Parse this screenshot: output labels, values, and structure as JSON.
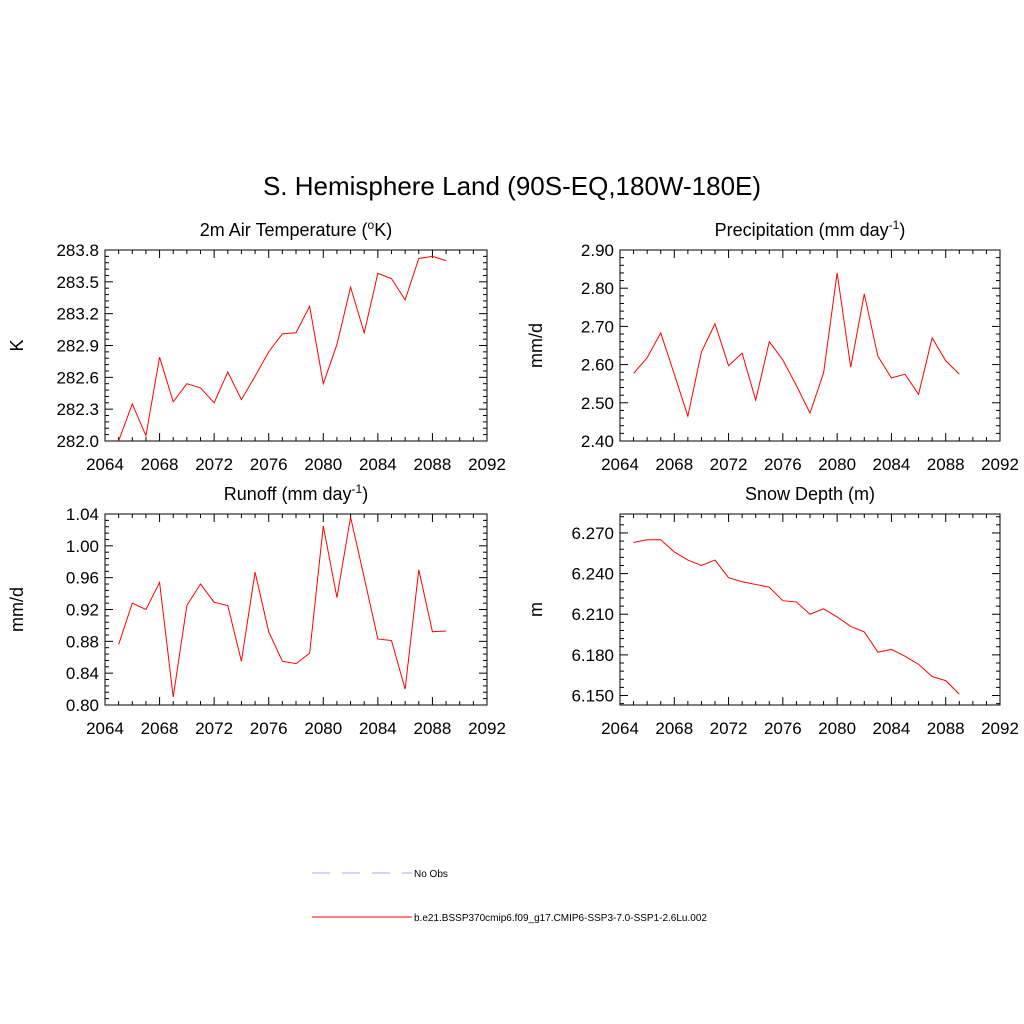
{
  "figure": {
    "title": "S. Hemisphere Land (90S-EQ,180W-180E)"
  },
  "colors": {
    "series": "#ff0000",
    "obs": "#a8a8e0",
    "axis": "#000000"
  },
  "chart_data": [
    {
      "type": "line",
      "title": "2m Air Temperature (",
      "title_sup": "o",
      "title_tail": "K)",
      "xlabel": "",
      "ylabel": "K",
      "xlim": [
        2064,
        2092
      ],
      "ylim": [
        282.0,
        283.8
      ],
      "xticks": [
        2064,
        2068,
        2072,
        2076,
        2080,
        2084,
        2088,
        2092
      ],
      "yticks": [
        282.0,
        282.3,
        282.6,
        282.9,
        283.2,
        283.5,
        283.8
      ],
      "ytick_labels": [
        "282.0",
        "282.3",
        "282.6",
        "282.9",
        "283.2",
        "283.5",
        "283.8"
      ],
      "x": [
        2065,
        2066,
        2067,
        2068,
        2069,
        2070,
        2071,
        2072,
        2073,
        2074,
        2075,
        2076,
        2077,
        2078,
        2079,
        2080,
        2081,
        2082,
        2083,
        2084,
        2085,
        2086,
        2087,
        2088,
        2089
      ],
      "series": [
        {
          "values": [
            282.0,
            282.35,
            282.05,
            282.79,
            282.37,
            282.54,
            282.5,
            282.36,
            282.65,
            282.39,
            282.61,
            282.84,
            283.01,
            283.02,
            283.27,
            282.54,
            282.91,
            283.45,
            283.02,
            283.58,
            283.53,
            283.33,
            283.72,
            283.74,
            283.7
          ]
        }
      ]
    },
    {
      "type": "line",
      "title": "Precipitation (mm day",
      "title_sup": "-1",
      "title_tail": ")",
      "xlabel": "",
      "ylabel": "mm/d",
      "xlim": [
        2064,
        2092
      ],
      "ylim": [
        2.4,
        2.9
      ],
      "xticks": [
        2064,
        2068,
        2072,
        2076,
        2080,
        2084,
        2088,
        2092
      ],
      "yticks": [
        2.4,
        2.5,
        2.6,
        2.7,
        2.8,
        2.9
      ],
      "ytick_labels": [
        "2.40",
        "2.50",
        "2.60",
        "2.70",
        "2.80",
        "2.90"
      ],
      "x": [
        2065,
        2066,
        2067,
        2068,
        2069,
        2070,
        2071,
        2072,
        2073,
        2074,
        2075,
        2076,
        2077,
        2078,
        2079,
        2080,
        2081,
        2082,
        2083,
        2084,
        2085,
        2086,
        2087,
        2088,
        2089
      ],
      "series": [
        {
          "values": [
            2.577,
            2.618,
            2.683,
            2.575,
            2.465,
            2.633,
            2.707,
            2.597,
            2.63,
            2.507,
            2.66,
            2.612,
            2.545,
            2.473,
            2.578,
            2.84,
            2.593,
            2.785,
            2.622,
            2.565,
            2.575,
            2.522,
            2.67,
            2.61,
            2.575
          ]
        }
      ]
    },
    {
      "type": "line",
      "title": "Runoff (mm day",
      "title_sup": "-1",
      "title_tail": ")",
      "xlabel": "",
      "ylabel": "mm/d",
      "xlim": [
        2064,
        2092
      ],
      "ylim": [
        0.8,
        1.04
      ],
      "xticks": [
        2064,
        2068,
        2072,
        2076,
        2080,
        2084,
        2088,
        2092
      ],
      "yticks": [
        0.8,
        0.84,
        0.88,
        0.92,
        0.96,
        1.0,
        1.04
      ],
      "ytick_labels": [
        "0.80",
        "0.84",
        "0.88",
        "0.92",
        "0.96",
        "1.00",
        "1.04"
      ],
      "x": [
        2065,
        2066,
        2067,
        2068,
        2069,
        2070,
        2071,
        2072,
        2073,
        2074,
        2075,
        2076,
        2077,
        2078,
        2079,
        2080,
        2081,
        2082,
        2083,
        2084,
        2085,
        2086,
        2087,
        2088,
        2089
      ],
      "series": [
        {
          "values": [
            0.876,
            0.928,
            0.92,
            0.954,
            0.81,
            0.925,
            0.952,
            0.929,
            0.925,
            0.855,
            0.967,
            0.892,
            0.855,
            0.852,
            0.865,
            1.025,
            0.935,
            1.036,
            0.96,
            0.883,
            0.881,
            0.82,
            0.97,
            0.892,
            0.893
          ]
        }
      ]
    },
    {
      "type": "line",
      "title": "Snow Depth (m)",
      "title_sup": "",
      "title_tail": "",
      "xlabel": "",
      "ylabel": "m",
      "xlim": [
        2064,
        2092
      ],
      "ylim": [
        6.143,
        6.284
      ],
      "xticks": [
        2064,
        2068,
        2072,
        2076,
        2080,
        2084,
        2088,
        2092
      ],
      "yticks": [
        6.15,
        6.18,
        6.21,
        6.24,
        6.27
      ],
      "ytick_labels": [
        "6.150",
        "6.180",
        "6.210",
        "6.240",
        "6.270"
      ],
      "x": [
        2065,
        2066,
        2067,
        2068,
        2069,
        2070,
        2071,
        2072,
        2073,
        2074,
        2075,
        2076,
        2077,
        2078,
        2079,
        2080,
        2081,
        2082,
        2083,
        2084,
        2085,
        2086,
        2087,
        2088,
        2089
      ],
      "series": [
        {
          "values": [
            6.263,
            6.265,
            6.265,
            6.256,
            6.25,
            6.246,
            6.25,
            6.237,
            6.234,
            6.232,
            6.23,
            6.22,
            6.219,
            6.21,
            6.214,
            6.208,
            6.201,
            6.197,
            6.182,
            6.184,
            6.179,
            6.173,
            6.164,
            6.161,
            6.151
          ]
        }
      ]
    }
  ],
  "legend": {
    "obs_label": "No Obs",
    "model_label": "b.e21.BSSP370cmip6.f09_g17.CMIP6-SSP3-7.0-SSP1-2.6Lu.002"
  }
}
